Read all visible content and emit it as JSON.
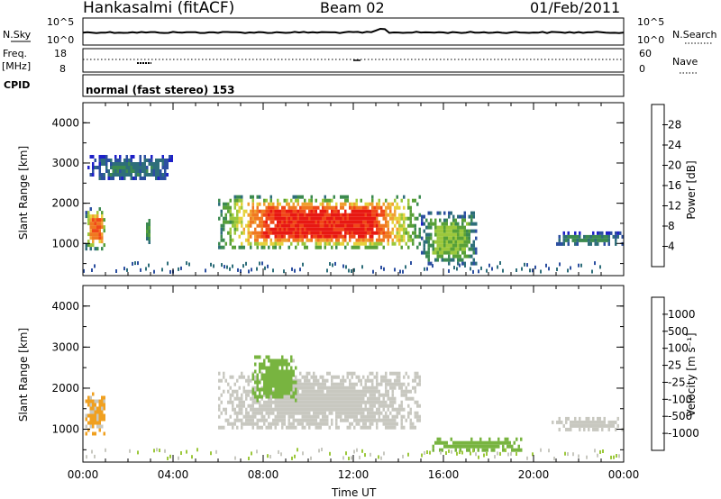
{
  "header": {
    "station": "Hankasalmi (fitACF)",
    "beam": "Beam 02",
    "date": "01/Feb/2011"
  },
  "status_panels": {
    "nsky_label": "N.Sky",
    "nsearch_label": "N.Search",
    "noise_ticks": [
      "10^5",
      "10^0"
    ],
    "freq_label_1": "Freq.",
    "freq_label_2": "[MHz]",
    "freq_ticks": [
      "18",
      "8"
    ],
    "nave_label": "Nave",
    "nave_ticks": [
      "60",
      "0"
    ],
    "cpid_label": "CPID",
    "cpid_text": "normal (fast stereo) 153"
  },
  "power_colorbar": {
    "label": "Power [dB]",
    "ticks": [
      "28",
      "24",
      "20",
      "16",
      "12",
      "8",
      "4"
    ],
    "colors": [
      "#1e20c8",
      "#2c4fa0",
      "#2e6e7a",
      "#3c8a50",
      "#58a038",
      "#9cc83c",
      "#e6d23c",
      "#f0a030",
      "#f07820",
      "#f04818",
      "#e81812"
    ]
  },
  "velocity_colorbar": {
    "label": "Velocity [m s⁻¹]",
    "ticks": [
      "1000",
      "500",
      "100",
      "25",
      "-25",
      "-100",
      "-500",
      "-1000"
    ],
    "colors": [
      "#2040b0",
      "#2e6aa0",
      "#2e8a78",
      "#3c9a50",
      "#78b440",
      "#c8c8c0",
      "#c8c8c0",
      "#f0a020",
      "#f07a18",
      "#f04a14",
      "#e81010"
    ]
  },
  "chart_data": [
    {
      "type": "heatmap",
      "title": "Power",
      "xlabel": "",
      "ylabel": "Slant Range [km]",
      "xlim": [
        "00:00",
        "24:00"
      ],
      "ylim": [
        200,
        4500
      ],
      "x_ticks": [
        "00:00",
        "04:00",
        "08:00",
        "12:00",
        "16:00",
        "20:00",
        "00:00"
      ],
      "y_ticks": [
        "4000",
        "3000",
        "2000",
        "1000"
      ],
      "zlim": [
        0,
        30
      ],
      "regions": [
        {
          "t": [
            0.1,
            1.0
          ],
          "r": [
            900,
            1900
          ],
          "peak": 24
        },
        {
          "t": [
            2.7,
            3.0
          ],
          "r": [
            1000,
            1700
          ],
          "peak": 10
        },
        {
          "t": [
            6.0,
            15.0
          ],
          "r": [
            900,
            2200
          ],
          "peak": 28
        },
        {
          "t": [
            15.0,
            17.5
          ],
          "r": [
            500,
            1800
          ],
          "peak": 14
        },
        {
          "t": [
            20.8,
            24.0
          ],
          "r": [
            1000,
            1300
          ],
          "peak": 9
        },
        {
          "t": [
            0.2,
            4.0
          ],
          "r": [
            2600,
            3200
          ],
          "peak": 7
        }
      ]
    },
    {
      "type": "heatmap",
      "title": "Velocity",
      "xlabel": "Time UT",
      "ylabel": "Slant Range [km]",
      "xlim": [
        "00:00",
        "24:00"
      ],
      "ylim": [
        200,
        4500
      ],
      "x_ticks": [
        "00:00",
        "04:00",
        "08:00",
        "12:00",
        "16:00",
        "20:00",
        "00:00"
      ],
      "y_ticks": [
        "4000",
        "3000",
        "2000",
        "1000"
      ],
      "zlim": [
        -1000,
        1000
      ],
      "regions": [
        {
          "t": [
            0.1,
            1.0
          ],
          "r": [
            900,
            1900
          ],
          "v": 300
        },
        {
          "t": [
            6.0,
            15.0
          ],
          "r": [
            1000,
            2400
          ],
          "v": 0
        },
        {
          "t": [
            7.5,
            9.5
          ],
          "r": [
            1700,
            2800
          ],
          "v": -150
        },
        {
          "t": [
            15.5,
            19.5
          ],
          "r": [
            500,
            800
          ],
          "v": -200
        },
        {
          "t": [
            20.8,
            24.0
          ],
          "r": [
            1000,
            1300
          ],
          "v": 0
        }
      ]
    }
  ]
}
